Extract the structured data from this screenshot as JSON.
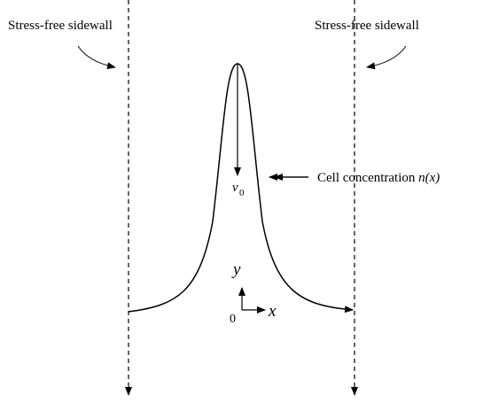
{
  "labels": {
    "left_sidewall": "Stress-free sidewall",
    "right_sidewall": "Stress-free sidewall",
    "concentration": {
      "prefix": "Cell concentration",
      "symbol": "n",
      "argument": "(x)"
    },
    "velocity": {
      "symbol": "v",
      "subscript": "0"
    },
    "axes": {
      "y": "y",
      "origin": "0",
      "x": "x"
    }
  }
}
